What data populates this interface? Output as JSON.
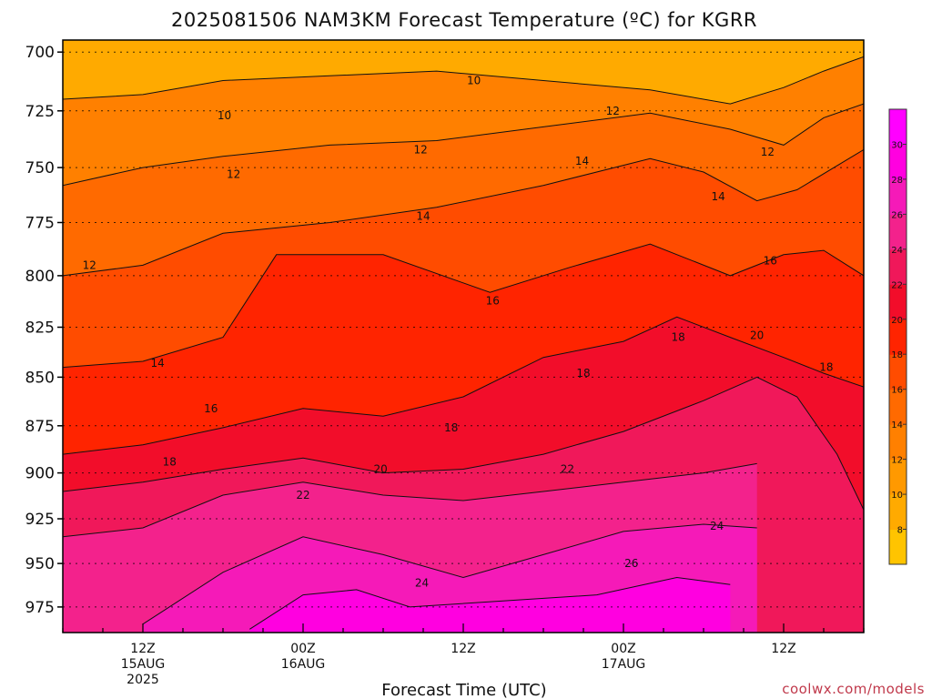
{
  "chart_data": {
    "type": "heatmap",
    "title": "2025081506 NAM3KM Forecast Temperature (ºC) for KGRR",
    "xlabel": "Forecast Time (UTC)",
    "ylabel": "",
    "units": "ºC",
    "x_ticks": [
      {
        "hour": 6,
        "lines": [
          "12Z",
          "15AUG",
          "2025"
        ]
      },
      {
        "hour": 18,
        "lines": [
          "00Z",
          "16AUG"
        ]
      },
      {
        "hour": 30,
        "lines": [
          "12Z"
        ]
      },
      {
        "hour": 42,
        "lines": [
          "00Z",
          "17AUG"
        ]
      },
      {
        "hour": 54,
        "lines": [
          "12Z"
        ]
      }
    ],
    "xlim": [
      0,
      60
    ],
    "y_scale": "log-pressure",
    "ylim": [
      990,
      695
    ],
    "y_ticks": [
      700,
      725,
      750,
      775,
      800,
      825,
      850,
      875,
      900,
      925,
      950,
      975
    ],
    "grid": "dotted horizontal at pressure ticks",
    "colorbar": {
      "labels": [
        8,
        10,
        12,
        14,
        16,
        18,
        20,
        22,
        24,
        26,
        28,
        30
      ],
      "colors": [
        "#ffc400",
        "#ffaa00",
        "#ff9900",
        "#ff8000",
        "#ff6a00",
        "#ff4c00",
        "#ff2400",
        "#f20d2a",
        "#f0185a",
        "#f3228c",
        "#f51ab8",
        "#ff00e0",
        "#ff00ff"
      ]
    },
    "contour_levels": [
      10,
      12,
      14,
      16,
      18,
      20,
      22,
      24,
      26
    ],
    "contours": [
      {
        "level": 10,
        "points": [
          [
            0,
            720
          ],
          [
            6,
            718
          ],
          [
            12,
            712
          ],
          [
            20,
            710
          ],
          [
            28,
            708
          ],
          [
            36,
            712
          ],
          [
            44,
            716
          ],
          [
            50,
            722
          ],
          [
            54,
            715
          ],
          [
            57,
            708
          ],
          [
            60,
            702
          ]
        ]
      },
      {
        "level": 12,
        "points": [
          [
            0,
            758
          ],
          [
            6,
            750
          ],
          [
            12,
            745
          ],
          [
            20,
            740
          ],
          [
            28,
            738
          ],
          [
            36,
            732
          ],
          [
            44,
            726
          ],
          [
            50,
            733
          ],
          [
            54,
            740
          ],
          [
            57,
            728
          ],
          [
            60,
            722
          ]
        ]
      },
      {
        "level": 14,
        "points": [
          [
            0,
            800
          ],
          [
            6,
            795
          ],
          [
            12,
            780
          ],
          [
            20,
            775
          ],
          [
            28,
            768
          ],
          [
            36,
            758
          ],
          [
            44,
            746
          ],
          [
            48,
            752
          ],
          [
            52,
            765
          ],
          [
            55,
            760
          ],
          [
            60,
            742
          ]
        ]
      },
      {
        "level": 16,
        "points": [
          [
            0,
            845
          ],
          [
            6,
            842
          ],
          [
            12,
            830
          ],
          [
            16,
            790
          ],
          [
            24,
            790
          ],
          [
            32,
            808
          ],
          [
            38,
            796
          ],
          [
            44,
            785
          ],
          [
            50,
            800
          ],
          [
            54,
            790
          ],
          [
            57,
            788
          ],
          [
            60,
            800
          ]
        ]
      },
      {
        "level": 18,
        "points": [
          [
            0,
            890
          ],
          [
            6,
            885
          ],
          [
            12,
            876
          ],
          [
            18,
            866
          ],
          [
            24,
            870
          ],
          [
            30,
            860
          ],
          [
            36,
            840
          ],
          [
            42,
            832
          ],
          [
            46,
            820
          ],
          [
            50,
            830
          ],
          [
            54,
            840
          ],
          [
            57,
            848
          ],
          [
            60,
            855
          ]
        ]
      },
      {
        "level": 20,
        "points": [
          [
            0,
            910
          ],
          [
            6,
            905
          ],
          [
            12,
            898
          ],
          [
            18,
            892
          ],
          [
            24,
            900
          ],
          [
            30,
            898
          ],
          [
            36,
            890
          ],
          [
            42,
            878
          ],
          [
            48,
            862
          ],
          [
            52,
            850
          ],
          [
            55,
            860
          ],
          [
            58,
            890
          ],
          [
            60,
            920
          ]
        ]
      },
      {
        "level": 22,
        "points": [
          [
            0,
            935
          ],
          [
            6,
            930
          ],
          [
            12,
            912
          ],
          [
            18,
            905
          ],
          [
            24,
            912
          ],
          [
            30,
            915
          ],
          [
            36,
            910
          ],
          [
            42,
            905
          ],
          [
            48,
            900
          ],
          [
            52,
            895
          ]
        ]
      },
      {
        "level": 24,
        "points": [
          [
            6,
            985
          ],
          [
            12,
            955
          ],
          [
            18,
            935
          ],
          [
            24,
            945
          ],
          [
            30,
            958
          ],
          [
            36,
            945
          ],
          [
            42,
            932
          ],
          [
            48,
            928
          ],
          [
            52,
            930
          ]
        ]
      },
      {
        "level": 26,
        "points": [
          [
            14,
            988
          ],
          [
            18,
            968
          ],
          [
            22,
            965
          ],
          [
            26,
            975
          ],
          [
            40,
            968
          ],
          [
            46,
            958
          ],
          [
            50,
            962
          ]
        ]
      }
    ],
    "contour_labels": [
      {
        "level": 10,
        "x": 12.1,
        "p": 727
      },
      {
        "level": 10,
        "x": 30.8,
        "p": 712
      },
      {
        "level": 12,
        "x": 2.0,
        "p": 795
      },
      {
        "level": 12,
        "x": 12.8,
        "p": 753
      },
      {
        "level": 12,
        "x": 26.8,
        "p": 742
      },
      {
        "level": 12,
        "x": 41.2,
        "p": 725
      },
      {
        "level": 12,
        "x": 52.8,
        "p": 743
      },
      {
        "level": 14,
        "x": 7.1,
        "p": 843
      },
      {
        "level": 14,
        "x": 27.0,
        "p": 772
      },
      {
        "level": 14,
        "x": 38.9,
        "p": 747
      },
      {
        "level": 14,
        "x": 49.1,
        "p": 763
      },
      {
        "level": 16,
        "x": 11.1,
        "p": 866
      },
      {
        "level": 16,
        "x": 32.2,
        "p": 812
      },
      {
        "level": 16,
        "x": 53.0,
        "p": 793
      },
      {
        "level": 18,
        "x": 8.0,
        "p": 894
      },
      {
        "level": 18,
        "x": 29.1,
        "p": 876
      },
      {
        "level": 18,
        "x": 39.0,
        "p": 848
      },
      {
        "level": 18,
        "x": 46.1,
        "p": 830
      },
      {
        "level": 18,
        "x": 57.2,
        "p": 845
      },
      {
        "level": 20,
        "x": 23.8,
        "p": 898
      },
      {
        "level": 20,
        "x": 52.0,
        "p": 829
      },
      {
        "level": 22,
        "x": 18.0,
        "p": 912
      },
      {
        "level": 22,
        "x": 37.8,
        "p": 898
      },
      {
        "level": 24,
        "x": 26.9,
        "p": 961
      },
      {
        "level": 24,
        "x": 49.0,
        "p": 929
      },
      {
        "level": 26,
        "x": 42.6,
        "p": 950
      }
    ],
    "terrain": {
      "surface_pressure_hPa": 990,
      "color": "#9c5630"
    }
  },
  "credit": "coolwx.com/models"
}
